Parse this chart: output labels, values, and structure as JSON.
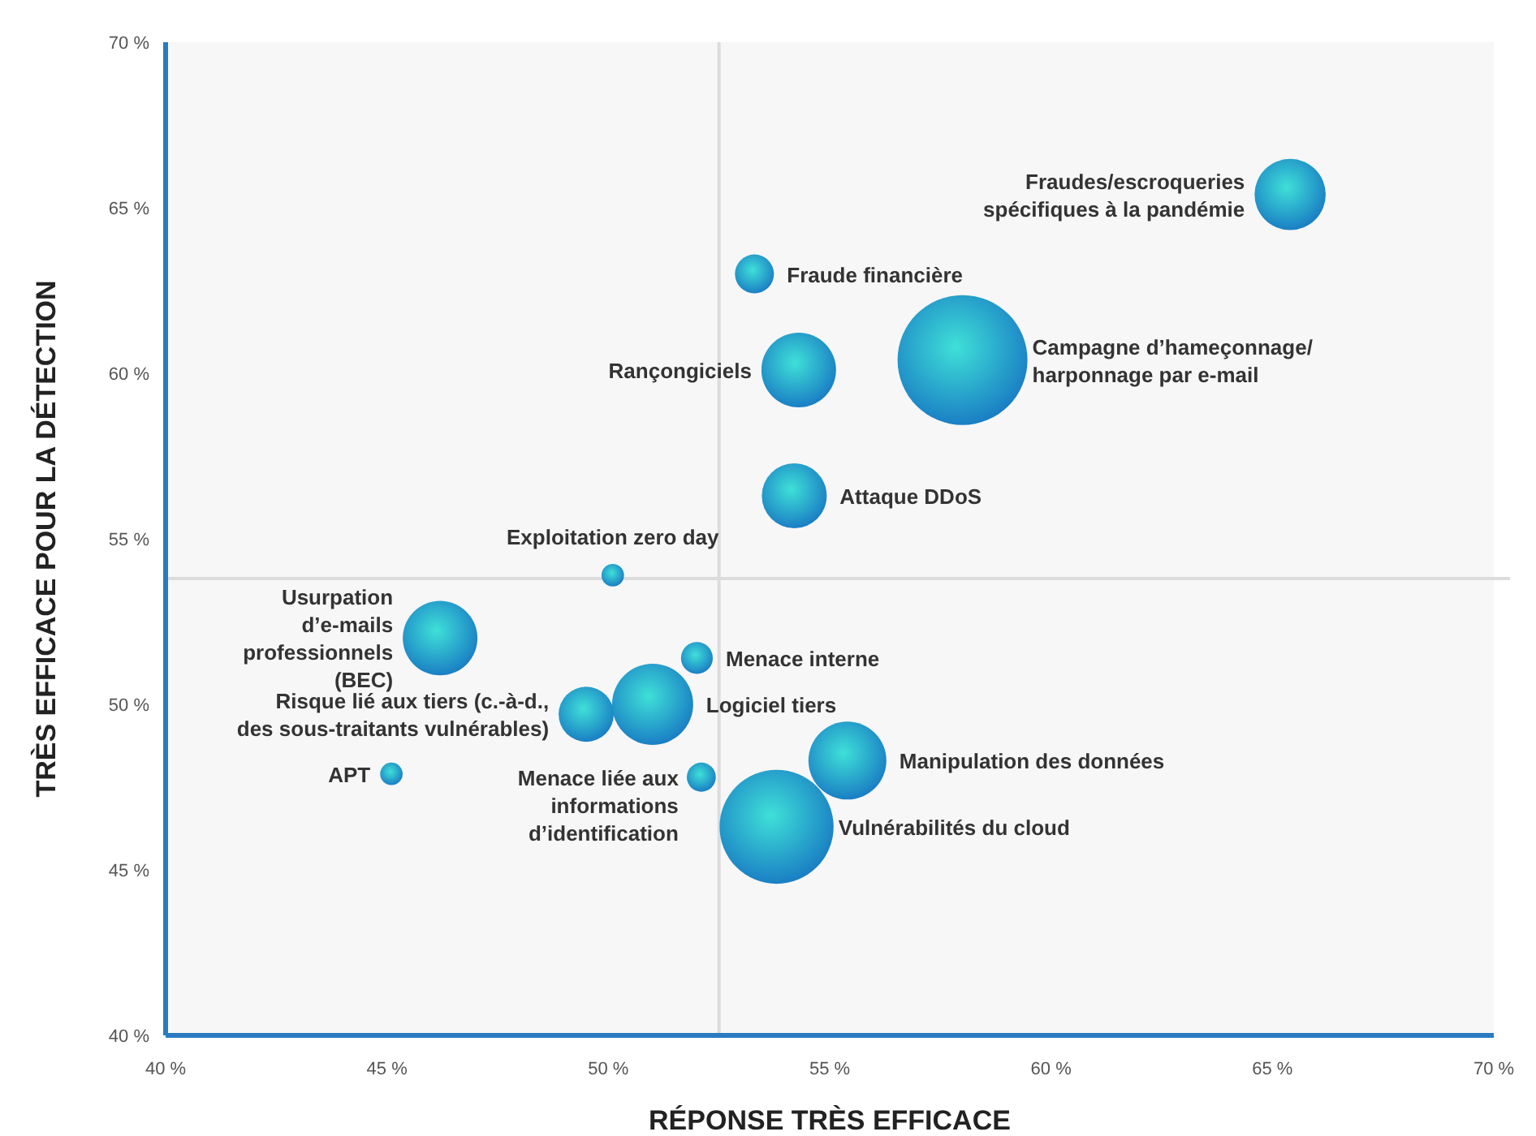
{
  "chart_data": {
    "type": "bubble",
    "xlabel": "RÉPONSE TRÈS EFFICACE",
    "ylabel": "TRÈS EFFICACE POUR LA DÉTECTION",
    "xlim": [
      40,
      70
    ],
    "ylim": [
      40,
      70
    ],
    "xticks": [
      {
        "value": 40,
        "label": "40 %"
      },
      {
        "value": 45,
        "label": "45 %"
      },
      {
        "value": 50,
        "label": "50 %"
      },
      {
        "value": 55,
        "label": "55 %"
      },
      {
        "value": 60,
        "label": "60 %"
      },
      {
        "value": 65,
        "label": "65 %"
      },
      {
        "value": 70,
        "label": "70 %"
      }
    ],
    "yticks": [
      {
        "value": 40,
        "label": "40 %"
      },
      {
        "value": 45,
        "label": "45 %"
      },
      {
        "value": 50,
        "label": "50 %"
      },
      {
        "value": 55,
        "label": "55 %"
      },
      {
        "value": 60,
        "label": "60 %"
      },
      {
        "value": 65,
        "label": "65 %"
      },
      {
        "value": 70,
        "label": "70 %"
      }
    ],
    "grid": false,
    "ref_lines": [
      {
        "axis": "x",
        "value": 52.5,
        "color": "#dcdcdc"
      },
      {
        "axis": "y",
        "value": 53.8,
        "color": "#dcdcdc"
      }
    ],
    "series": [
      {
        "color": "#1a7fc4",
        "x": [
          65.4,
          53.3,
          58.0,
          54.3,
          54.2,
          50.1,
          46.2,
          52.0,
          51.0,
          49.5,
          45.1,
          52.1,
          55.4,
          53.8
        ],
        "values": [
          65.4,
          63.0,
          60.4,
          60.1,
          56.3,
          53.9,
          52.0,
          51.4,
          50.0,
          49.7,
          47.9,
          47.8,
          48.3,
          46.3
        ],
        "sizes": [
          0.3,
          0.09,
          1,
          0.33,
          0.25,
          0.03,
          0.33,
          0.06,
          0.39,
          0.18,
          0.03,
          0.05,
          0.36,
          0.77
        ]
      }
    ],
    "annotations": [
      {
        "text": "Fraudes/escroqueries\nspécifiques à la pandémie",
        "x": 65.4,
        "y": 65.4
      },
      {
        "text": "Fraude financière",
        "x": 53.3,
        "y": 63.0
      },
      "Campagne d’hameçonnage/\nharponnage par e-mail",
      {
        "text": "Rançongiciels",
        "x": 54.3,
        "y": 60.1
      },
      {
        "text": "Attaque DDoS",
        "x": 54.2,
        "y": 56.3
      },
      {
        "text": "Exploitation zero day",
        "x": 50.1,
        "y": 53.9
      },
      {
        "text": "Usurpation\nd’e-mails\nprofessionnels\n(BEC)",
        "x": 46.2,
        "y": 52.0
      },
      {
        "text": "Menace interne",
        "x": 52.0,
        "y": 51.4
      },
      {
        "text": "Logiciel tiers",
        "x": 51.0,
        "y": 50.0
      },
      {
        "text": "Risque lié aux tiers (c.-à-d.,\ndes sous-traitants vulnérables)",
        "x": 49.5,
        "y": 49.7
      },
      {
        "text": "APT",
        "x": 45.1,
        "y": 47.9
      },
      {
        "text": "Menace liée aux\ninformations\nd’identification",
        "x": 52.1,
        "y": 47.8
      },
      {
        "text": "Manipulation des données",
        "x": 55.4,
        "y": 48.3
      },
      {
        "text": "Vulnérabilités du cloud",
        "x": 53.8,
        "y": 46.3
      }
    ]
  }
}
